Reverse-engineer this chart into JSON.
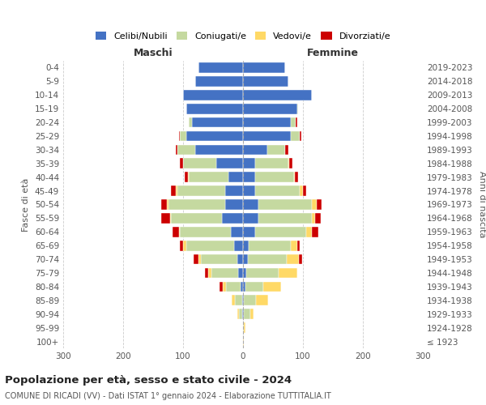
{
  "age_groups": [
    "100+",
    "95-99",
    "90-94",
    "85-89",
    "80-84",
    "75-79",
    "70-74",
    "65-69",
    "60-64",
    "55-59",
    "50-54",
    "45-49",
    "40-44",
    "35-39",
    "30-34",
    "25-29",
    "20-24",
    "15-19",
    "10-14",
    "5-9",
    "0-4"
  ],
  "birth_years": [
    "≤ 1923",
    "1924-1928",
    "1929-1933",
    "1934-1938",
    "1939-1943",
    "1944-1948",
    "1949-1953",
    "1954-1958",
    "1959-1963",
    "1964-1968",
    "1969-1973",
    "1974-1978",
    "1979-1983",
    "1984-1988",
    "1989-1993",
    "1994-1998",
    "1999-2003",
    "2004-2008",
    "2009-2013",
    "2014-2018",
    "2019-2023"
  ],
  "maschi": {
    "celibi": [
      0,
      0,
      2,
      2,
      4,
      8,
      10,
      15,
      20,
      35,
      30,
      30,
      25,
      45,
      80,
      95,
      85,
      95,
      100,
      80,
      75
    ],
    "coniugati": [
      0,
      0,
      5,
      12,
      25,
      45,
      60,
      80,
      85,
      85,
      95,
      80,
      65,
      55,
      30,
      10,
      5,
      0,
      0,
      0,
      0
    ],
    "vedovi": [
      0,
      0,
      2,
      5,
      5,
      5,
      5,
      5,
      2,
      2,
      2,
      2,
      2,
      0,
      0,
      0,
      0,
      0,
      0,
      0,
      0
    ],
    "divorziati": [
      0,
      0,
      0,
      0,
      5,
      5,
      8,
      5,
      10,
      15,
      10,
      8,
      5,
      5,
      2,
      2,
      0,
      0,
      0,
      0,
      0
    ]
  },
  "femmine": {
    "nubili": [
      0,
      0,
      2,
      2,
      4,
      5,
      8,
      10,
      20,
      25,
      25,
      20,
      20,
      20,
      40,
      80,
      80,
      90,
      115,
      75,
      70
    ],
    "coniugate": [
      0,
      2,
      10,
      20,
      30,
      55,
      65,
      70,
      85,
      90,
      90,
      75,
      65,
      55,
      30,
      15,
      8,
      2,
      0,
      0,
      0
    ],
    "vedove": [
      1,
      2,
      5,
      20,
      30,
      30,
      20,
      10,
      10,
      5,
      8,
      5,
      2,
      2,
      0,
      0,
      0,
      0,
      0,
      0,
      0
    ],
    "divorziate": [
      0,
      0,
      0,
      0,
      0,
      0,
      5,
      5,
      10,
      10,
      8,
      5,
      5,
      5,
      5,
      2,
      2,
      0,
      0,
      0,
      0
    ]
  },
  "colors": {
    "celibi": "#4472C4",
    "coniugati": "#C5D9A0",
    "vedovi": "#FFD966",
    "divorziati": "#CC0000"
  },
  "legend_labels": [
    "Celibi/Nubili",
    "Coniugati/e",
    "Vedovi/e",
    "Divorziati/e"
  ],
  "title": "Popolazione per età, sesso e stato civile - 2024",
  "subtitle": "COMUNE DI RICADI (VV) - Dati ISTAT 1° gennaio 2024 - Elaborazione TUTTITALIA.IT",
  "ylabel_left": "Fasce di età",
  "ylabel_right": "Anni di nascita",
  "xlabel_left": "Maschi",
  "xlabel_right": "Femmine",
  "xlim": 300,
  "background_color": "#ffffff",
  "grid_color": "#cccccc"
}
